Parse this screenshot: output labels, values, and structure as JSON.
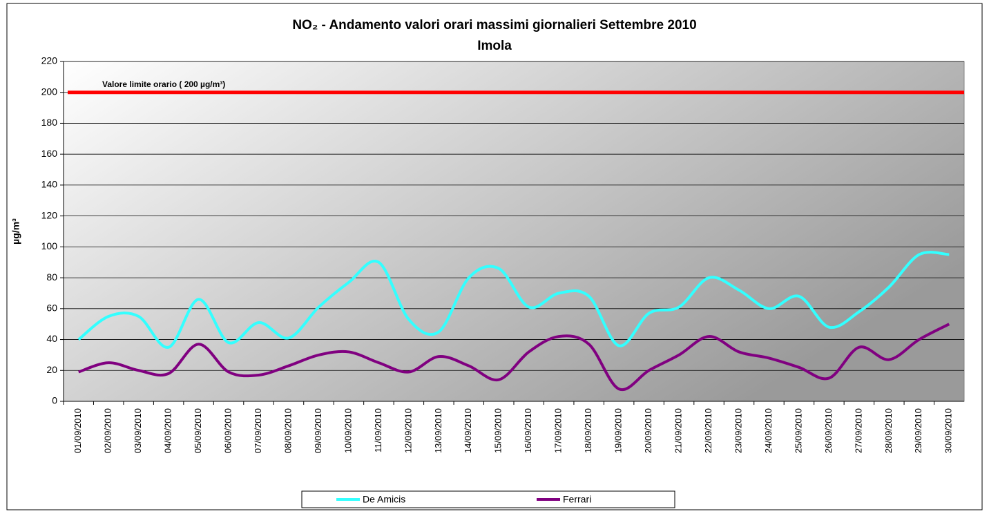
{
  "chart_data": {
    "type": "line",
    "title": "NO₂ - Andamento valori orari massimi giornalieri Settembre 2010",
    "subtitle": "Imola",
    "y_label": "µg/m³",
    "categories": [
      "01/09/2010",
      "02/09/2010",
      "03/09/2010",
      "04/09/2010",
      "05/09/2010",
      "06/09/2010",
      "07/09/2010",
      "08/09/2010",
      "09/09/2010",
      "10/09/2010",
      "11/09/2010",
      "12/09/2010",
      "13/09/2010",
      "14/09/2010",
      "15/09/2010",
      "16/09/2010",
      "17/09/2010",
      "18/09/2010",
      "19/09/2010",
      "20/09/2010",
      "21/09/2010",
      "22/09/2010",
      "23/09/2010",
      "24/09/2010",
      "25/09/2010",
      "26/09/2010",
      "27/09/2010",
      "28/09/2010",
      "29/09/2010",
      "30/09/2010"
    ],
    "series": [
      {
        "name": "De Amicis",
        "color": "#33ffff",
        "values": [
          40,
          55,
          55,
          35,
          66,
          38,
          51,
          41,
          61,
          77,
          90,
          53,
          45,
          80,
          86,
          61,
          70,
          68,
          36,
          57,
          61,
          80,
          72,
          60,
          68,
          48,
          58,
          74,
          95,
          95
        ]
      },
      {
        "name": "Ferrari",
        "color": "#800080",
        "values": [
          19,
          25,
          20,
          18,
          37,
          19,
          17,
          23,
          30,
          32,
          25,
          19,
          29,
          23,
          14,
          32,
          42,
          37,
          8,
          20,
          30,
          42,
          32,
          28,
          22,
          15,
          35,
          27,
          40,
          50
        ]
      }
    ],
    "limit_line": {
      "value": 200,
      "label": "Valore limite orario ( 200 µg/m³)",
      "color": "#ff0000"
    },
    "ylim": [
      0,
      220
    ],
    "yticks": [
      0,
      20,
      40,
      60,
      80,
      100,
      120,
      140,
      160,
      180,
      200,
      220
    ],
    "grid": true,
    "smooth": true
  }
}
